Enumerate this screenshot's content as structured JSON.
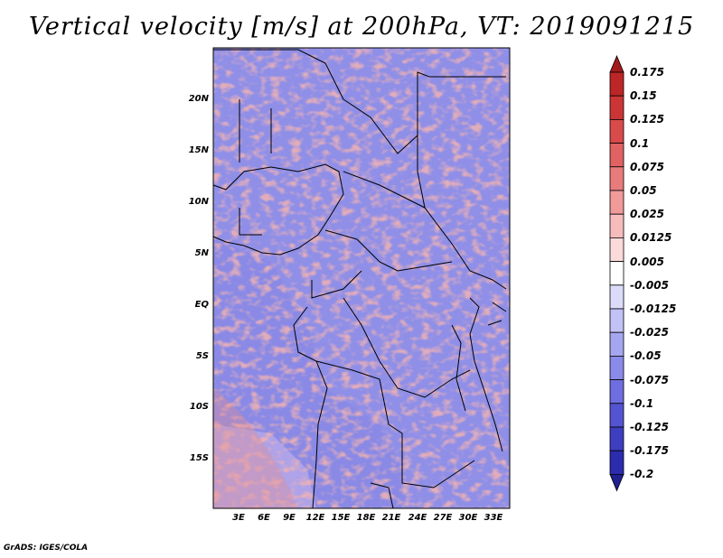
{
  "title": "Vertical velocity [m/s] at 200hPa, VT: 2019091215",
  "credit": "GrADS: IGES/COLA",
  "lat_labels": [
    "20N",
    "15N",
    "10N",
    "5N",
    "EQ",
    "5S",
    "10S",
    "15S"
  ],
  "lon_labels": [
    "3E",
    "6E",
    "9E",
    "12E",
    "15E",
    "18E",
    "21E",
    "24E",
    "27E",
    "30E",
    "33E"
  ],
  "colorbar": {
    "labels": [
      "0.175",
      "0.15",
      "0.125",
      "0.1",
      "0.075",
      "0.05",
      "0.025",
      "0.0125",
      "0.005",
      "-0.005",
      "-0.0125",
      "-0.025",
      "-0.05",
      "-0.075",
      "-0.1",
      "-0.125",
      "-0.175",
      "-0.2"
    ],
    "colors": [
      "#a51a1a",
      "#bd2626",
      "#cc3535",
      "#d94a4a",
      "#e06262",
      "#e87c7c",
      "#f09a9a",
      "#f6bcbc",
      "#fbdada",
      "#ffffff",
      "#dcdcfa",
      "#c2c2f6",
      "#a6a6f0",
      "#8a8aea",
      "#6e6ee0",
      "#5454d2",
      "#3e3ec0",
      "#2c2cae",
      "#20208f"
    ]
  },
  "palette": {
    "positive": "#e88a8a",
    "negative": "#8a8aea",
    "strong_negative": "#5a5ad8",
    "coast": "#000000"
  }
}
